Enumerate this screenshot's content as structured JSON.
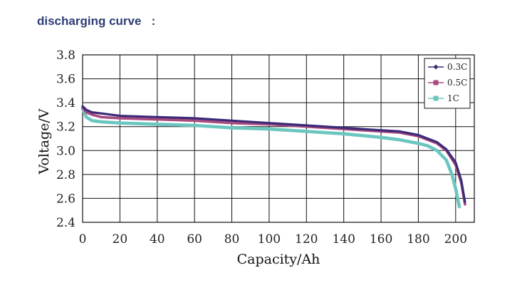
{
  "heading": "discharging curve   :",
  "chart_data": {
    "type": "line",
    "title": "",
    "xlabel": "Capacity/Ah",
    "ylabel": "Voltage/V",
    "xlim": [
      0,
      210
    ],
    "ylim": [
      2.4,
      3.8
    ],
    "xticks": [
      0,
      20,
      40,
      60,
      80,
      100,
      120,
      140,
      160,
      180,
      200
    ],
    "yticks": [
      "2.4",
      "2.6",
      "2.8",
      "3.0",
      "3.2",
      "3.4",
      "3.6",
      "3.8"
    ],
    "grid": true,
    "legend_position": "top-right",
    "series": [
      {
        "name": "0.3C",
        "color": "#3b2a78",
        "x": [
          0,
          2,
          5,
          10,
          20,
          40,
          60,
          80,
          100,
          120,
          140,
          160,
          170,
          180,
          190,
          195,
          200,
          203,
          205
        ],
        "y": [
          3.37,
          3.34,
          3.32,
          3.31,
          3.29,
          3.28,
          3.27,
          3.25,
          3.23,
          3.21,
          3.19,
          3.17,
          3.16,
          3.13,
          3.07,
          3.01,
          2.9,
          2.75,
          2.57
        ]
      },
      {
        "name": "0.5C",
        "color": "#a84a7e",
        "x": [
          0,
          2,
          5,
          10,
          20,
          40,
          60,
          80,
          100,
          120,
          140,
          160,
          170,
          180,
          190,
          195,
          200,
          203,
          205
        ],
        "y": [
          3.36,
          3.32,
          3.3,
          3.28,
          3.27,
          3.26,
          3.25,
          3.23,
          3.22,
          3.2,
          3.18,
          3.16,
          3.15,
          3.12,
          3.06,
          3.0,
          2.88,
          2.73,
          2.55
        ]
      },
      {
        "name": "1C",
        "color": "#6cc6c0",
        "x": [
          0,
          2,
          5,
          10,
          20,
          40,
          60,
          80,
          100,
          120,
          140,
          160,
          170,
          180,
          185,
          190,
          195,
          198,
          200,
          202
        ],
        "y": [
          3.35,
          3.28,
          3.25,
          3.24,
          3.23,
          3.22,
          3.21,
          3.19,
          3.18,
          3.16,
          3.14,
          3.11,
          3.09,
          3.06,
          3.04,
          3.0,
          2.92,
          2.8,
          2.68,
          2.53
        ]
      }
    ]
  }
}
